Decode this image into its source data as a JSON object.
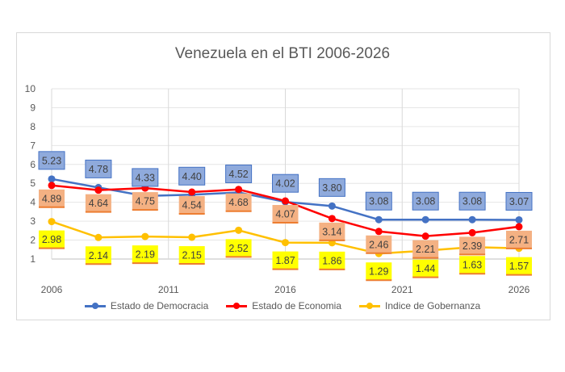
{
  "chart_data": {
    "type": "line",
    "title": "Venezuela en el BTI 2006-2026",
    "x": [
      2006,
      2008,
      2010,
      2012,
      2014,
      2016,
      2018,
      2020,
      2022,
      2024,
      2026
    ],
    "x_tick_labels": [
      "2006",
      "2011",
      "2016",
      "2021",
      "2026"
    ],
    "y_tick_labels": [
      "1",
      "2",
      "3",
      "4",
      "5",
      "6",
      "7",
      "8",
      "9",
      "10"
    ],
    "ylim": [
      1,
      10
    ],
    "xlim": [
      2006,
      2026
    ],
    "grid": true,
    "legend_position": "bottom",
    "series": [
      {
        "name": "Estado de Democracia",
        "color": "#4472c4",
        "label_fill": "#8faadc",
        "label_border": "#4472c4",
        "values": [
          5.23,
          4.78,
          4.33,
          4.4,
          4.52,
          4.02,
          3.8,
          3.08,
          3.08,
          3.08,
          3.07
        ]
      },
      {
        "name": "Estado de Economia",
        "color": "#ff0000",
        "label_fill": "#f4b183",
        "label_border": "#ed7d31",
        "values": [
          4.89,
          4.64,
          4.75,
          4.54,
          4.68,
          4.07,
          3.14,
          2.46,
          2.21,
          2.39,
          2.71
        ]
      },
      {
        "name": "Indice de Gobernanza",
        "color": "#ffc000",
        "label_fill": "#ffff00",
        "label_border": "#ed7d31",
        "values": [
          2.98,
          2.14,
          2.19,
          2.15,
          2.52,
          1.87,
          1.86,
          1.29,
          1.44,
          1.63,
          1.57
        ]
      }
    ]
  }
}
